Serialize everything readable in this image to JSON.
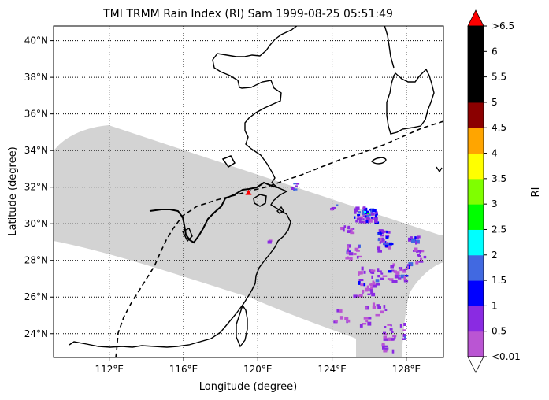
{
  "title": "TMI TRMM Rain Index (RI) Sam 1999-08-25 05:51:49",
  "map": {
    "xlabel": "Longitude (degree)",
    "ylabel": "Latitude (degree)",
    "lon_range": [
      109,
      130
    ],
    "lat_range": [
      22.7,
      40.8
    ],
    "lon_ticks": [
      {
        "value": 112,
        "label": "112°E"
      },
      {
        "value": 116,
        "label": "116°E"
      },
      {
        "value": 120,
        "label": "120°E"
      },
      {
        "value": 124,
        "label": "124°E"
      },
      {
        "value": 128,
        "label": "128°E"
      }
    ],
    "lat_ticks": [
      {
        "value": 24,
        "label": "24°N"
      },
      {
        "value": 26,
        "label": "26°N"
      },
      {
        "value": 28,
        "label": "28°N"
      },
      {
        "value": 30,
        "label": "30°N"
      },
      {
        "value": 32,
        "label": "32°N"
      },
      {
        "value": 34,
        "label": "34°N"
      },
      {
        "value": 36,
        "label": "36°N"
      },
      {
        "value": 38,
        "label": "38°N"
      },
      {
        "value": 40,
        "label": "40°N"
      }
    ],
    "gridlines": "dotted",
    "swath_color": "#d3d3d3",
    "coastline_color": "#000000",
    "track_style": "dashed",
    "marker_color": "#ff0000",
    "marker_position": {
      "lon": 119.5,
      "lat": 31.7
    }
  },
  "colorbar": {
    "label": "RI",
    "boundaries": [
      0,
      0.5,
      1,
      1.5,
      2,
      2.5,
      3,
      3.5,
      4,
      4.5,
      5,
      5.5,
      6,
      6.5
    ],
    "tick_labels": [
      "<0.01",
      "0.5",
      "1",
      "1.5",
      "2",
      "2.5",
      "3",
      "3.5",
      "4",
      "4.5",
      "5",
      "5.5",
      "6",
      ">6.5"
    ],
    "colors": [
      "#ba55d3",
      "#8a2be2",
      "#0000ff",
      "#4169e1",
      "#00ffff",
      "#00ff00",
      "#7fff00",
      "#ffff00",
      "#ffa500",
      "#8b0000",
      "#000000",
      "#000000",
      "#000000"
    ],
    "under_color": "#ffffff",
    "over_color": "#ff0000"
  }
}
